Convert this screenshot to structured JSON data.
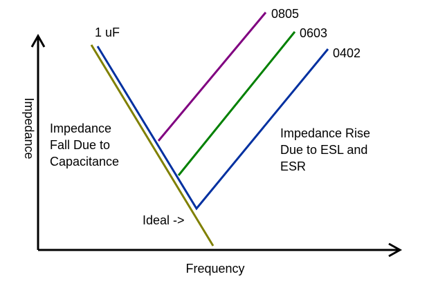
{
  "axes": {
    "x_label": "Frequency",
    "y_label": "Impedance",
    "axis_color": "#000000"
  },
  "curves": {
    "ideal": {
      "label": "Ideal ->",
      "color": "#808000"
    },
    "cap_1uf": {
      "label": "1 uF",
      "color": "#0030a0"
    },
    "series": [
      {
        "label": "0805",
        "color": "#800080"
      },
      {
        "label": "0603",
        "color": "#008000"
      },
      {
        "label": "0402",
        "color": "#0030a0"
      }
    ]
  },
  "annotations": {
    "fall": [
      "Impedance",
      "Fall Due to",
      "Capacitance"
    ],
    "rise": [
      "Impedance Rise",
      "Due to ESL and",
      "ESR"
    ]
  }
}
